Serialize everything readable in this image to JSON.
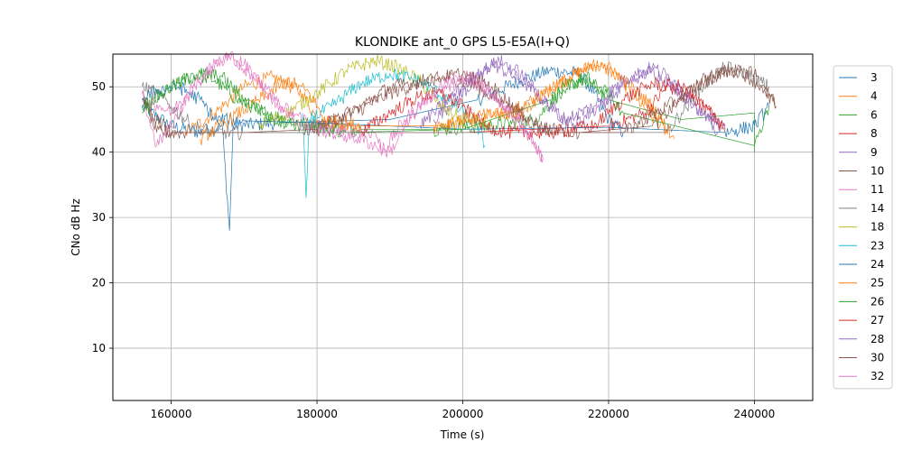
{
  "chart_data": {
    "type": "line",
    "title": "KLONDIKE ant_0 GPS L5-E5A(I+Q)",
    "xlabel": "Time (s)",
    "ylabel": "CNo dB Hz",
    "xlim": [
      152000,
      248000
    ],
    "ylim": [
      2,
      55
    ],
    "xticks": [
      160000,
      180000,
      200000,
      220000,
      240000
    ],
    "yticks": [
      10,
      20,
      30,
      40,
      50
    ],
    "grid": true,
    "legend_position": "right",
    "series": [
      {
        "name": "3",
        "color": "#1f77b4",
        "points": [
          [
            156000,
            47
          ],
          [
            160000,
            44
          ],
          [
            164000,
            43
          ],
          [
            167000,
            44
          ],
          [
            168000,
            28
          ],
          [
            168500,
            44
          ],
          [
            175000,
            44.5
          ],
          [
            190000,
            45
          ],
          [
            202000,
            48
          ],
          [
            208000,
            51
          ],
          [
            212000,
            52.5
          ],
          [
            216000,
            52
          ],
          [
            218000,
            49
          ],
          [
            220000,
            45
          ],
          [
            222000,
            43
          ]
        ]
      },
      {
        "name": "4",
        "color": "#ff7f0e",
        "points": [
          [
            162000,
            43
          ],
          [
            166000,
            46
          ],
          [
            170000,
            50
          ],
          [
            174000,
            51.5
          ],
          [
            178000,
            49
          ],
          [
            180000,
            45
          ],
          [
            184000,
            44
          ],
          [
            197000,
            44
          ],
          [
            202000,
            45
          ],
          [
            206000,
            46
          ],
          [
            210000,
            48
          ],
          [
            214000,
            51
          ],
          [
            218000,
            53.5
          ],
          [
            221000,
            52
          ],
          [
            224000,
            48
          ],
          [
            228000,
            43
          ]
        ]
      },
      {
        "name": "6",
        "color": "#2ca02c",
        "points": [
          [
            156000,
            46
          ],
          [
            159000,
            49
          ],
          [
            163000,
            52
          ],
          [
            166000,
            51
          ],
          [
            169000,
            48
          ],
          [
            173000,
            46
          ],
          [
            176000,
            45
          ],
          [
            180000,
            44
          ],
          [
            186000,
            43.5
          ],
          [
            196000,
            43.5
          ],
          [
            204000,
            44
          ],
          [
            210000,
            45
          ],
          [
            214000,
            50
          ],
          [
            217000,
            51.5
          ],
          [
            220000,
            48
          ],
          [
            230000,
            45
          ],
          [
            240000,
            46
          ],
          [
            240000,
            40
          ]
        ]
      },
      {
        "name": "8",
        "color": "#d62728",
        "points": [
          [
            190000,
            43
          ],
          [
            200000,
            43
          ],
          [
            210000,
            43.5
          ],
          [
            220000,
            44
          ],
          [
            225000,
            46
          ],
          [
            228000,
            50
          ],
          [
            231000,
            49
          ],
          [
            234000,
            46
          ],
          [
            236000,
            43
          ]
        ]
      },
      {
        "name": "9",
        "color": "#9467bd",
        "points": [
          [
            196000,
            45
          ],
          [
            200000,
            49
          ],
          [
            204000,
            53.5
          ],
          [
            208000,
            51
          ],
          [
            212000,
            47
          ],
          [
            215000,
            44
          ],
          [
            220000,
            48
          ],
          [
            223000,
            51
          ],
          [
            226000,
            52.5
          ],
          [
            229000,
            50
          ],
          [
            232000,
            47
          ],
          [
            236000,
            43.5
          ]
        ]
      },
      {
        "name": "10",
        "color": "#8c564b",
        "points": [
          [
            156000,
            49
          ],
          [
            158000,
            43
          ],
          [
            162000,
            43
          ],
          [
            178000,
            43
          ],
          [
            185000,
            46
          ],
          [
            190000,
            49
          ],
          [
            194000,
            50.5
          ],
          [
            198000,
            51.5
          ],
          [
            202000,
            50
          ],
          [
            206000,
            47
          ],
          [
            210000,
            44
          ],
          [
            216000,
            43
          ],
          [
            226000,
            44
          ],
          [
            230000,
            48
          ],
          [
            234000,
            52
          ],
          [
            238000,
            52.5
          ],
          [
            241000,
            50
          ],
          [
            243000,
            47
          ]
        ]
      },
      {
        "name": "11",
        "color": "#e377c2",
        "points": [
          [
            156000,
            49
          ],
          [
            158000,
            41
          ],
          [
            160000,
            44
          ],
          [
            163000,
            50
          ],
          [
            166000,
            53.5
          ],
          [
            168000,
            54.7
          ],
          [
            171000,
            52
          ],
          [
            175000,
            47
          ],
          [
            180000,
            44
          ],
          [
            188000,
            43
          ],
          [
            189000,
            40
          ],
          [
            192000,
            45
          ],
          [
            196000,
            49
          ],
          [
            200000,
            51
          ],
          [
            204000,
            49
          ],
          [
            208000,
            45
          ],
          [
            211000,
            39
          ]
        ]
      },
      {
        "name": "14",
        "color": "#7f7f7f",
        "points": [
          [
            156000,
            50
          ],
          [
            158000,
            49
          ],
          [
            160000,
            47
          ],
          [
            163000,
            44
          ],
          [
            166000,
            43
          ],
          [
            170000,
            43
          ],
          [
            228000,
            43
          ],
          [
            230000,
            46
          ],
          [
            233000,
            50
          ],
          [
            236000,
            53
          ],
          [
            239000,
            52
          ],
          [
            242000,
            50
          ]
        ]
      },
      {
        "name": "18",
        "color": "#bcbd22",
        "points": [
          [
            172000,
            44
          ],
          [
            176000,
            46
          ],
          [
            180000,
            49
          ],
          [
            184000,
            52.5
          ],
          [
            188000,
            54
          ],
          [
            191000,
            53
          ],
          [
            194000,
            51
          ],
          [
            197000,
            47
          ],
          [
            200000,
            45
          ],
          [
            204000,
            44
          ]
        ]
      },
      {
        "name": "23",
        "color": "#17becf",
        "points": [
          [
            178000,
            46
          ],
          [
            178500,
            33
          ],
          [
            179000,
            45
          ],
          [
            182000,
            47
          ],
          [
            186000,
            50.5
          ],
          [
            190000,
            52
          ],
          [
            194000,
            51
          ],
          [
            198000,
            48
          ],
          [
            202000,
            44
          ],
          [
            203000,
            41
          ]
        ]
      },
      {
        "name": "24",
        "color": "#1f77b4",
        "points": [
          [
            156000,
            48
          ],
          [
            158000,
            49.5
          ],
          [
            161000,
            50
          ],
          [
            164000,
            48
          ],
          [
            166000,
            45
          ],
          [
            170000,
            44.8
          ],
          [
            180000,
            44.5
          ],
          [
            190000,
            44
          ],
          [
            200000,
            43.5
          ],
          [
            220000,
            43.8
          ],
          [
            236000,
            43
          ],
          [
            240000,
            44
          ],
          [
            242000,
            47
          ]
        ]
      },
      {
        "name": "25",
        "color": "#ff7f0e",
        "points": [
          [
            164000,
            42
          ],
          [
            168000,
            45
          ],
          [
            172000,
            48
          ],
          [
            176000,
            51
          ],
          [
            179000,
            49
          ],
          [
            181000,
            45
          ],
          [
            186000,
            44
          ],
          [
            196000,
            44
          ],
          [
            202000,
            45.5
          ],
          [
            208000,
            46
          ],
          [
            212000,
            50
          ],
          [
            216000,
            52
          ],
          [
            219000,
            53.8
          ],
          [
            222000,
            51
          ],
          [
            226000,
            47
          ],
          [
            229000,
            42
          ]
        ]
      },
      {
        "name": "26",
        "color": "#2ca02c",
        "points": [
          [
            156000,
            47
          ],
          [
            160000,
            50
          ],
          [
            164000,
            52
          ],
          [
            167000,
            51.5
          ],
          [
            170000,
            48
          ],
          [
            174000,
            45
          ],
          [
            178000,
            44
          ],
          [
            184000,
            43
          ],
          [
            200000,
            43.5
          ],
          [
            212000,
            48
          ],
          [
            216000,
            51
          ],
          [
            219000,
            50
          ],
          [
            222000,
            46
          ],
          [
            240000,
            41
          ],
          [
            242000,
            47
          ]
        ]
      },
      {
        "name": "27",
        "color": "#d62728",
        "points": [
          [
            186000,
            43
          ],
          [
            190000,
            46
          ],
          [
            194000,
            48.5
          ],
          [
            197000,
            49
          ],
          [
            200000,
            47
          ],
          [
            203000,
            44
          ],
          [
            206000,
            43
          ],
          [
            212000,
            43
          ],
          [
            218000,
            44
          ],
          [
            222000,
            48
          ],
          [
            226000,
            50.5
          ],
          [
            230000,
            50
          ],
          [
            233000,
            47
          ],
          [
            236000,
            44
          ]
        ]
      },
      {
        "name": "28",
        "color": "#9467bd",
        "points": [
          [
            194000,
            44
          ],
          [
            198000,
            48
          ],
          [
            202000,
            52
          ],
          [
            205000,
            54
          ],
          [
            208000,
            52
          ],
          [
            211000,
            48
          ],
          [
            214000,
            45
          ],
          [
            218000,
            47
          ],
          [
            222000,
            51
          ],
          [
            226000,
            53
          ],
          [
            229000,
            51
          ],
          [
            232000,
            47
          ],
          [
            235000,
            43
          ]
        ]
      },
      {
        "name": "30",
        "color": "#8c564b",
        "points": [
          [
            156000,
            48
          ],
          [
            158000,
            45
          ],
          [
            160000,
            43
          ],
          [
            170000,
            43
          ],
          [
            180000,
            43.5
          ],
          [
            186000,
            47
          ],
          [
            190000,
            50
          ],
          [
            195000,
            51
          ],
          [
            200000,
            52
          ],
          [
            204000,
            50
          ],
          [
            208000,
            46
          ],
          [
            212000,
            43
          ],
          [
            222000,
            43
          ],
          [
            228000,
            47
          ],
          [
            232000,
            50
          ],
          [
            236000,
            52.5
          ],
          [
            240000,
            52
          ],
          [
            243000,
            47
          ]
        ]
      },
      {
        "name": "32",
        "color": "#e377c2",
        "points": [
          [
            157000,
            48
          ],
          [
            160000,
            46
          ],
          [
            163000,
            50
          ],
          [
            166000,
            53.5
          ],
          [
            168000,
            54.8
          ],
          [
            170000,
            53.5
          ],
          [
            174000,
            48
          ],
          [
            178000,
            44
          ],
          [
            186000,
            42
          ],
          [
            190000,
            40
          ],
          [
            194000,
            47
          ],
          [
            198000,
            51
          ],
          [
            201000,
            51.5
          ],
          [
            204000,
            49
          ],
          [
            208000,
            44
          ],
          [
            211000,
            39
          ]
        ]
      }
    ]
  }
}
